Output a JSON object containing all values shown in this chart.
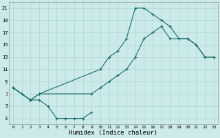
{
  "xlabel": "Humidex (Indice chaleur)",
  "background_color": "#cceaea",
  "line_color": "#1a6b6b",
  "grid_color": "#aad4d4",
  "xlim": [
    -0.5,
    23.5
  ],
  "ylim": [
    2,
    22
  ],
  "xticks": [
    0,
    1,
    2,
    3,
    4,
    5,
    6,
    7,
    8,
    9,
    10,
    11,
    12,
    13,
    14,
    15,
    16,
    17,
    18,
    19,
    20,
    21,
    22,
    23
  ],
  "yticks": [
    3,
    5,
    7,
    9,
    11,
    13,
    15,
    17,
    19,
    21
  ],
  "lines": [
    {
      "x": [
        0,
        1,
        2,
        3,
        4,
        5,
        6,
        7,
        8,
        9
      ],
      "y": [
        8,
        7,
        6,
        6,
        5,
        3,
        3,
        3,
        3,
        4
      ]
    },
    {
      "x": [
        0,
        2,
        3,
        10,
        11,
        12,
        13,
        14,
        15,
        16,
        17,
        18,
        19,
        20,
        21,
        22,
        23
      ],
      "y": [
        8,
        6,
        7,
        11,
        13,
        14,
        16,
        21,
        21,
        20,
        19,
        18,
        16,
        16,
        15,
        13,
        13
      ]
    },
    {
      "x": [
        0,
        2,
        3,
        9,
        10,
        11,
        12,
        13,
        14,
        15,
        16,
        17,
        18,
        19,
        20,
        21,
        22,
        23
      ],
      "y": [
        8,
        6,
        7,
        7,
        8,
        9,
        10,
        11,
        13,
        16,
        17,
        18,
        16,
        16,
        16,
        15,
        13,
        13
      ]
    }
  ]
}
